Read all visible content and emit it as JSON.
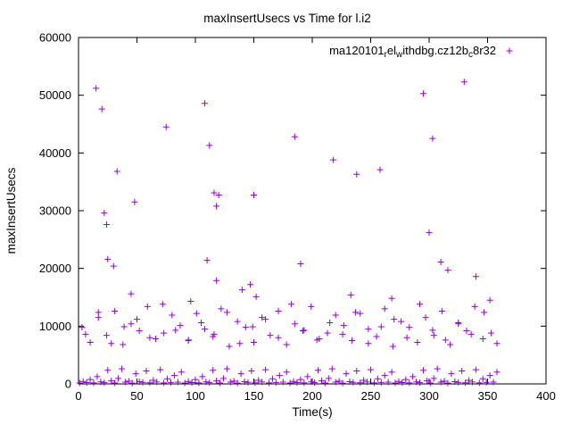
{
  "chart_data": {
    "type": "scatter",
    "title": "maxInsertUsecs vs Time for l.i2",
    "xlabel": "Time(s)",
    "ylabel": "maxInsertUsecs",
    "xlim": [
      0,
      400
    ],
    "ylim": [
      0,
      60000
    ],
    "xticks": [
      0,
      50,
      100,
      150,
      200,
      250,
      300,
      350,
      400
    ],
    "yticks": [
      0,
      10000,
      20000,
      30000,
      40000,
      50000,
      60000
    ],
    "grid": false,
    "legend_position": "top-right-inside",
    "marker": "plus",
    "marker_color": "#9400d3",
    "border_color": "#000000",
    "series": [
      {
        "name": "ma120101_rel_withdbg.cz12b_c8r32",
        "name_parts": [
          {
            "t": "ma120101"
          },
          {
            "t": "r",
            "sub": true
          },
          {
            "t": "el"
          },
          {
            "t": "w",
            "sub": true
          },
          {
            "t": "ithdbg.cz12b"
          },
          {
            "t": "c",
            "sub": true
          },
          {
            "t": "8r32"
          }
        ],
        "color": "#9400d3",
        "points": [
          [
            1,
            150
          ],
          [
            4,
            420
          ],
          [
            7,
            230
          ],
          [
            10,
            760
          ],
          [
            13,
            180
          ],
          [
            16,
            1250
          ],
          [
            19,
            340
          ],
          [
            22,
            210
          ],
          [
            25,
            2350
          ],
          [
            28,
            520
          ],
          [
            31,
            160
          ],
          [
            34,
            940
          ],
          [
            37,
            2600
          ],
          [
            40,
            310
          ],
          [
            43,
            460
          ],
          [
            46,
            140
          ],
          [
            49,
            1750
          ],
          [
            52,
            390
          ],
          [
            55,
            270
          ],
          [
            58,
            2250
          ],
          [
            61,
            200
          ],
          [
            64,
            610
          ],
          [
            67,
            330
          ],
          [
            70,
            2450
          ],
          [
            73,
            170
          ],
          [
            76,
            880
          ],
          [
            79,
            250
          ],
          [
            82,
            1450
          ],
          [
            85,
            300
          ],
          [
            88,
            2050
          ],
          [
            91,
            150
          ],
          [
            94,
            420
          ],
          [
            97,
            230
          ],
          [
            100,
            760
          ],
          [
            103,
            180
          ],
          [
            106,
            1250
          ],
          [
            109,
            340
          ],
          [
            112,
            210
          ],
          [
            115,
            2350
          ],
          [
            118,
            520
          ],
          [
            121,
            160
          ],
          [
            124,
            940
          ],
          [
            127,
            2600
          ],
          [
            130,
            310
          ],
          [
            133,
            460
          ],
          [
            136,
            140
          ],
          [
            139,
            1750
          ],
          [
            142,
            390
          ],
          [
            145,
            270
          ],
          [
            148,
            2250
          ],
          [
            151,
            200
          ],
          [
            154,
            610
          ],
          [
            157,
            330
          ],
          [
            160,
            2450
          ],
          [
            163,
            170
          ],
          [
            166,
            880
          ],
          [
            169,
            250
          ],
          [
            172,
            1450
          ],
          [
            175,
            300
          ],
          [
            178,
            2050
          ],
          [
            181,
            150
          ],
          [
            184,
            420
          ],
          [
            187,
            230
          ],
          [
            190,
            760
          ],
          [
            193,
            180
          ],
          [
            196,
            1250
          ],
          [
            199,
            340
          ],
          [
            202,
            210
          ],
          [
            205,
            2350
          ],
          [
            208,
            520
          ],
          [
            211,
            160
          ],
          [
            214,
            940
          ],
          [
            217,
            2600
          ],
          [
            220,
            310
          ],
          [
            223,
            460
          ],
          [
            226,
            140
          ],
          [
            229,
            1750
          ],
          [
            232,
            390
          ],
          [
            235,
            270
          ],
          [
            238,
            2250
          ],
          [
            241,
            200
          ],
          [
            244,
            610
          ],
          [
            247,
            330
          ],
          [
            250,
            2450
          ],
          [
            253,
            170
          ],
          [
            256,
            880
          ],
          [
            259,
            250
          ],
          [
            262,
            1450
          ],
          [
            265,
            300
          ],
          [
            268,
            2050
          ],
          [
            271,
            150
          ],
          [
            274,
            420
          ],
          [
            277,
            230
          ],
          [
            280,
            760
          ],
          [
            283,
            180
          ],
          [
            286,
            1250
          ],
          [
            289,
            340
          ],
          [
            292,
            210
          ],
          [
            295,
            2350
          ],
          [
            298,
            520
          ],
          [
            301,
            160
          ],
          [
            304,
            940
          ],
          [
            307,
            2600
          ],
          [
            310,
            310
          ],
          [
            313,
            460
          ],
          [
            316,
            140
          ],
          [
            319,
            1750
          ],
          [
            322,
            390
          ],
          [
            325,
            270
          ],
          [
            328,
            2250
          ],
          [
            331,
            200
          ],
          [
            334,
            610
          ],
          [
            337,
            330
          ],
          [
            340,
            2450
          ],
          [
            343,
            170
          ],
          [
            346,
            880
          ],
          [
            349,
            250
          ],
          [
            352,
            1450
          ],
          [
            355,
            300
          ],
          [
            358,
            2050
          ],
          [
            3,
            9800
          ],
          [
            10,
            7200
          ],
          [
            17,
            11500
          ],
          [
            24,
            8400
          ],
          [
            31,
            12600
          ],
          [
            38,
            6800
          ],
          [
            45,
            10400
          ],
          [
            52,
            9200
          ],
          [
            59,
            13400
          ],
          [
            66,
            7800
          ],
          [
            73,
            8800
          ],
          [
            80,
            11900
          ],
          [
            87,
            10100
          ],
          [
            94,
            7500
          ],
          [
            101,
            12200
          ],
          [
            108,
            9500
          ],
          [
            115,
            8200
          ],
          [
            122,
            13000
          ],
          [
            129,
            6500
          ],
          [
            136,
            10800
          ],
          [
            143,
            9800
          ],
          [
            150,
            7200
          ],
          [
            157,
            11500
          ],
          [
            164,
            8400
          ],
          [
            171,
            12600
          ],
          [
            178,
            6800
          ],
          [
            185,
            10400
          ],
          [
            192,
            9200
          ],
          [
            199,
            13400
          ],
          [
            206,
            7800
          ],
          [
            213,
            8800
          ],
          [
            220,
            11900
          ],
          [
            227,
            10100
          ],
          [
            234,
            7500
          ],
          [
            241,
            12200
          ],
          [
            248,
            9500
          ],
          [
            255,
            8200
          ],
          [
            262,
            13000
          ],
          [
            269,
            6500
          ],
          [
            276,
            10800
          ],
          [
            283,
            9800
          ],
          [
            290,
            7200
          ],
          [
            297,
            11500
          ],
          [
            304,
            8400
          ],
          [
            311,
            12600
          ],
          [
            318,
            6800
          ],
          [
            325,
            10400
          ],
          [
            332,
            9200
          ],
          [
            339,
            13400
          ],
          [
            346,
            7800
          ],
          [
            353,
            8800
          ],
          [
            6,
            8600
          ],
          [
            17,
            12400
          ],
          [
            28,
            7000
          ],
          [
            39,
            9900
          ],
          [
            50,
            11200
          ],
          [
            61,
            8000
          ],
          [
            72,
            13800
          ],
          [
            83,
            9300
          ],
          [
            94,
            7600
          ],
          [
            105,
            10600
          ],
          [
            116,
            8600
          ],
          [
            127,
            12400
          ],
          [
            138,
            7000
          ],
          [
            149,
            9900
          ],
          [
            160,
            11200
          ],
          [
            171,
            8000
          ],
          [
            182,
            13800
          ],
          [
            193,
            9300
          ],
          [
            204,
            7600
          ],
          [
            215,
            10600
          ],
          [
            226,
            8600
          ],
          [
            237,
            12400
          ],
          [
            248,
            7000
          ],
          [
            259,
            9900
          ],
          [
            270,
            11200
          ],
          [
            281,
            8000
          ],
          [
            292,
            13800
          ],
          [
            303,
            9300
          ],
          [
            314,
            7600
          ],
          [
            325,
            10600
          ],
          [
            336,
            8600
          ],
          [
            347,
            12400
          ],
          [
            358,
            7000
          ],
          [
            45,
            15600
          ],
          [
            96,
            14300
          ],
          [
            118,
            17900
          ],
          [
            140,
            16300
          ],
          [
            147,
            17200
          ],
          [
            152,
            15100
          ],
          [
            233,
            15400
          ],
          [
            268,
            14800
          ],
          [
            340,
            18600
          ],
          [
            352,
            14500
          ],
          [
            25,
            21600
          ],
          [
            30,
            20400
          ],
          [
            110,
            21400
          ],
          [
            190,
            20800
          ],
          [
            310,
            21100
          ],
          [
            316,
            19700
          ],
          [
            15,
            51200
          ],
          [
            20,
            47600
          ],
          [
            22,
            29600
          ],
          [
            24,
            27600
          ],
          [
            33,
            36800
          ],
          [
            48,
            31500
          ],
          [
            75,
            44500
          ],
          [
            108,
            48600
          ],
          [
            112,
            41300
          ],
          [
            116,
            33100
          ],
          [
            120,
            32700
          ],
          [
            118,
            30800
          ],
          [
            150,
            32700
          ],
          [
            185,
            42800
          ],
          [
            218,
            38800
          ],
          [
            238,
            36300
          ],
          [
            258,
            37100
          ],
          [
            295,
            50300
          ],
          [
            303,
            42500
          ],
          [
            300,
            26200
          ],
          [
            330,
            52300
          ]
        ]
      }
    ]
  }
}
